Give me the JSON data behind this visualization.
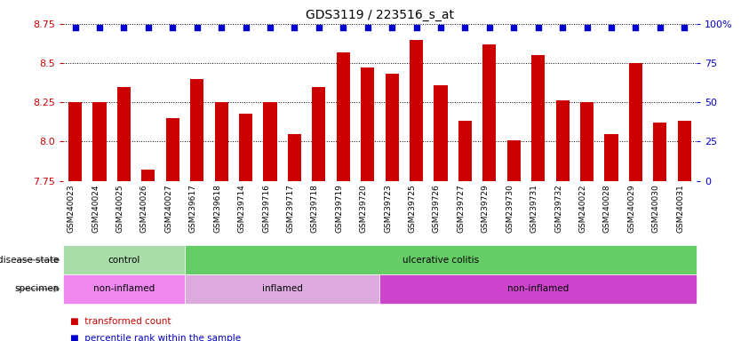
{
  "title": "GDS3119 / 223516_s_at",
  "samples": [
    "GSM240023",
    "GSM240024",
    "GSM240025",
    "GSM240026",
    "GSM240027",
    "GSM239617",
    "GSM239618",
    "GSM239714",
    "GSM239716",
    "GSM239717",
    "GSM239718",
    "GSM239719",
    "GSM239720",
    "GSM239723",
    "GSM239725",
    "GSM239726",
    "GSM239727",
    "GSM239729",
    "GSM239730",
    "GSM239731",
    "GSM239732",
    "GSM240022",
    "GSM240028",
    "GSM240029",
    "GSM240030",
    "GSM240031"
  ],
  "bar_values": [
    8.25,
    8.25,
    8.35,
    7.82,
    8.15,
    8.4,
    8.25,
    8.18,
    8.25,
    8.05,
    8.35,
    8.57,
    8.47,
    8.43,
    8.65,
    8.36,
    8.13,
    8.62,
    8.01,
    8.55,
    8.26,
    8.25,
    8.05,
    8.5,
    8.12,
    8.13
  ],
  "ymin": 7.75,
  "ymax": 8.75,
  "yticks": [
    7.75,
    8.0,
    8.25,
    8.5,
    8.75
  ],
  "right_yticks": [
    0,
    25,
    50,
    75,
    100
  ],
  "bar_color": "#cc0000",
  "dot_color": "#0000cc",
  "disease_state_groups": [
    {
      "label": "control",
      "start": 0,
      "end": 5,
      "color": "#aaddaa"
    },
    {
      "label": "ulcerative colitis",
      "start": 5,
      "end": 26,
      "color": "#66cc66"
    }
  ],
  "specimen_groups": [
    {
      "label": "non-inflamed",
      "start": 0,
      "end": 5,
      "color": "#ee88ee"
    },
    {
      "label": "inflamed",
      "start": 5,
      "end": 13,
      "color": "#ddaadd"
    },
    {
      "label": "non-inflamed",
      "start": 13,
      "end": 26,
      "color": "#cc44cc"
    }
  ]
}
